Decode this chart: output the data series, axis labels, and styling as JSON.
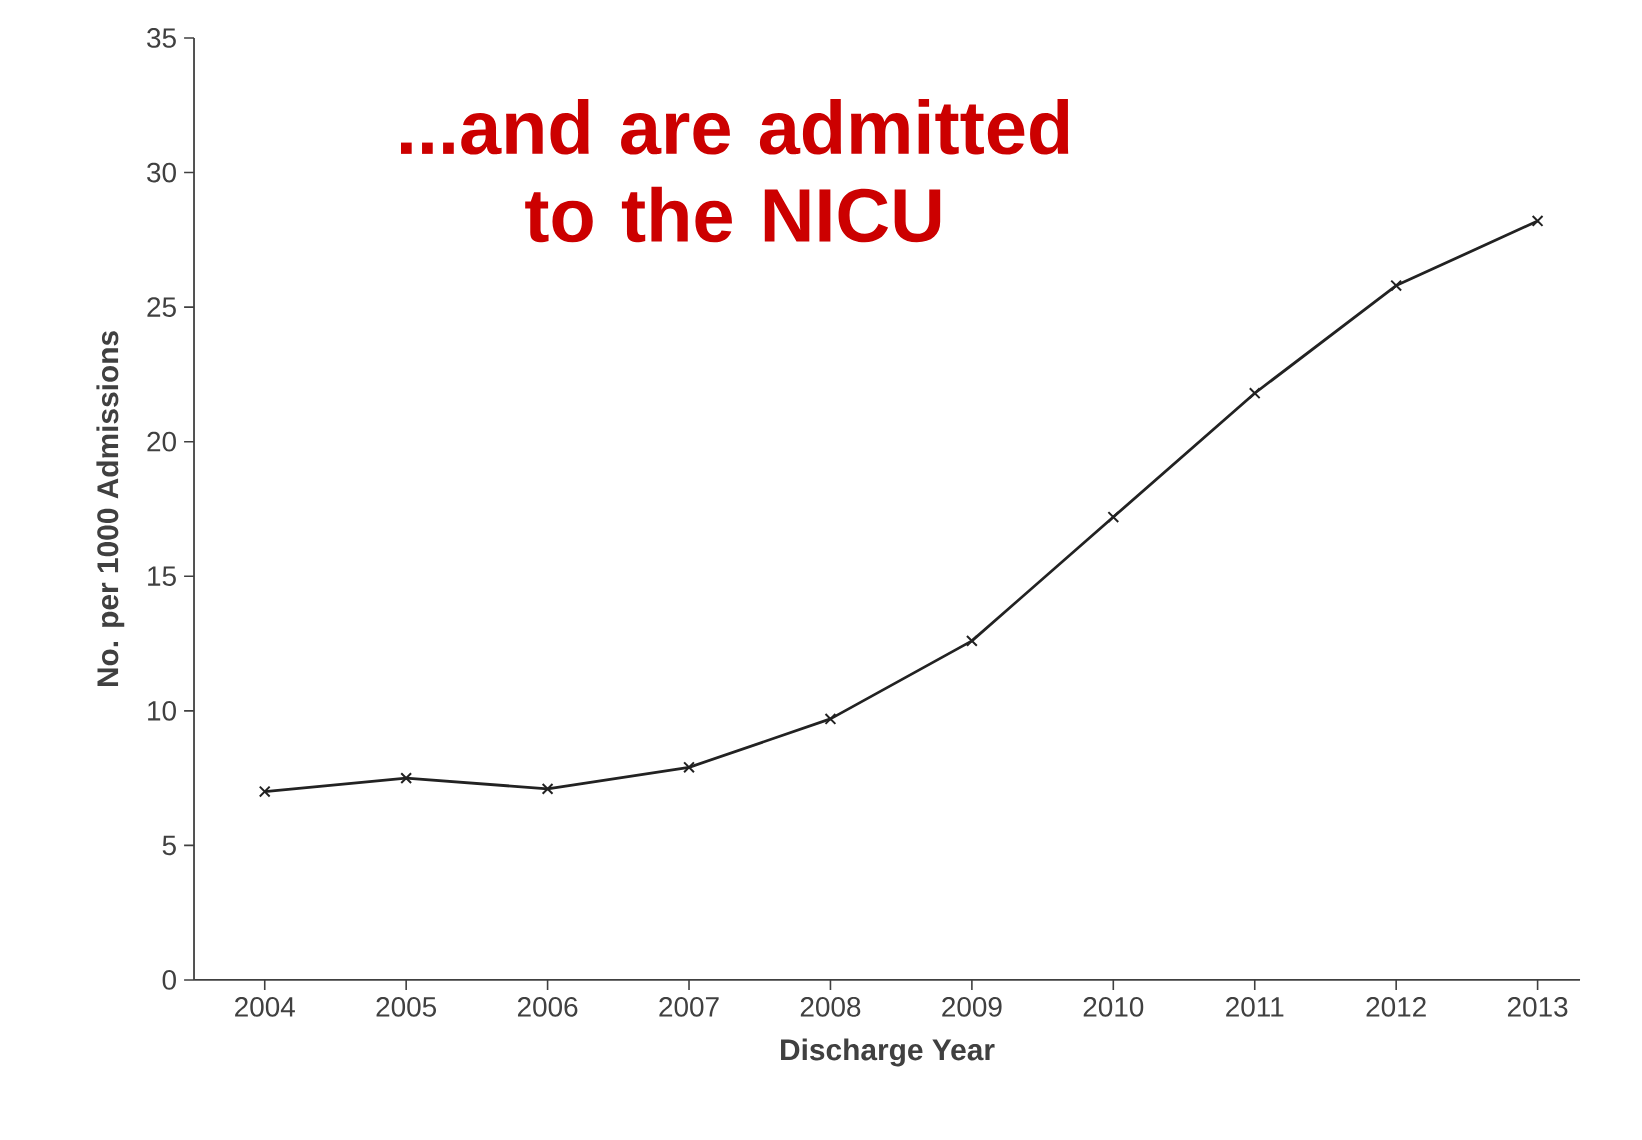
{
  "chart_data": {
    "type": "line",
    "title": "...and are admitted to the NICU",
    "xlabel": "Discharge Year",
    "ylabel": "No. per 1000 Admissions",
    "x": [
      2004,
      2005,
      2006,
      2007,
      2008,
      2009,
      2010,
      2011,
      2012,
      2013
    ],
    "series": [
      {
        "color": "#222222",
        "values": [
          7.0,
          7.5,
          7.1,
          7.9,
          9.7,
          12.6,
          17.2,
          21.8,
          25.8,
          28.2
        ]
      }
    ],
    "xlim": [
      2003.5,
      2013.3
    ],
    "xticks": [
      2004,
      2005,
      2006,
      2007,
      2008,
      2009,
      2010,
      2011,
      2012,
      2013
    ],
    "ylim": [
      0,
      35
    ],
    "yticks": [
      0,
      5,
      10,
      15,
      20,
      25,
      30,
      35
    ],
    "grid": false,
    "marker": "cross",
    "line_style": "solid"
  }
}
